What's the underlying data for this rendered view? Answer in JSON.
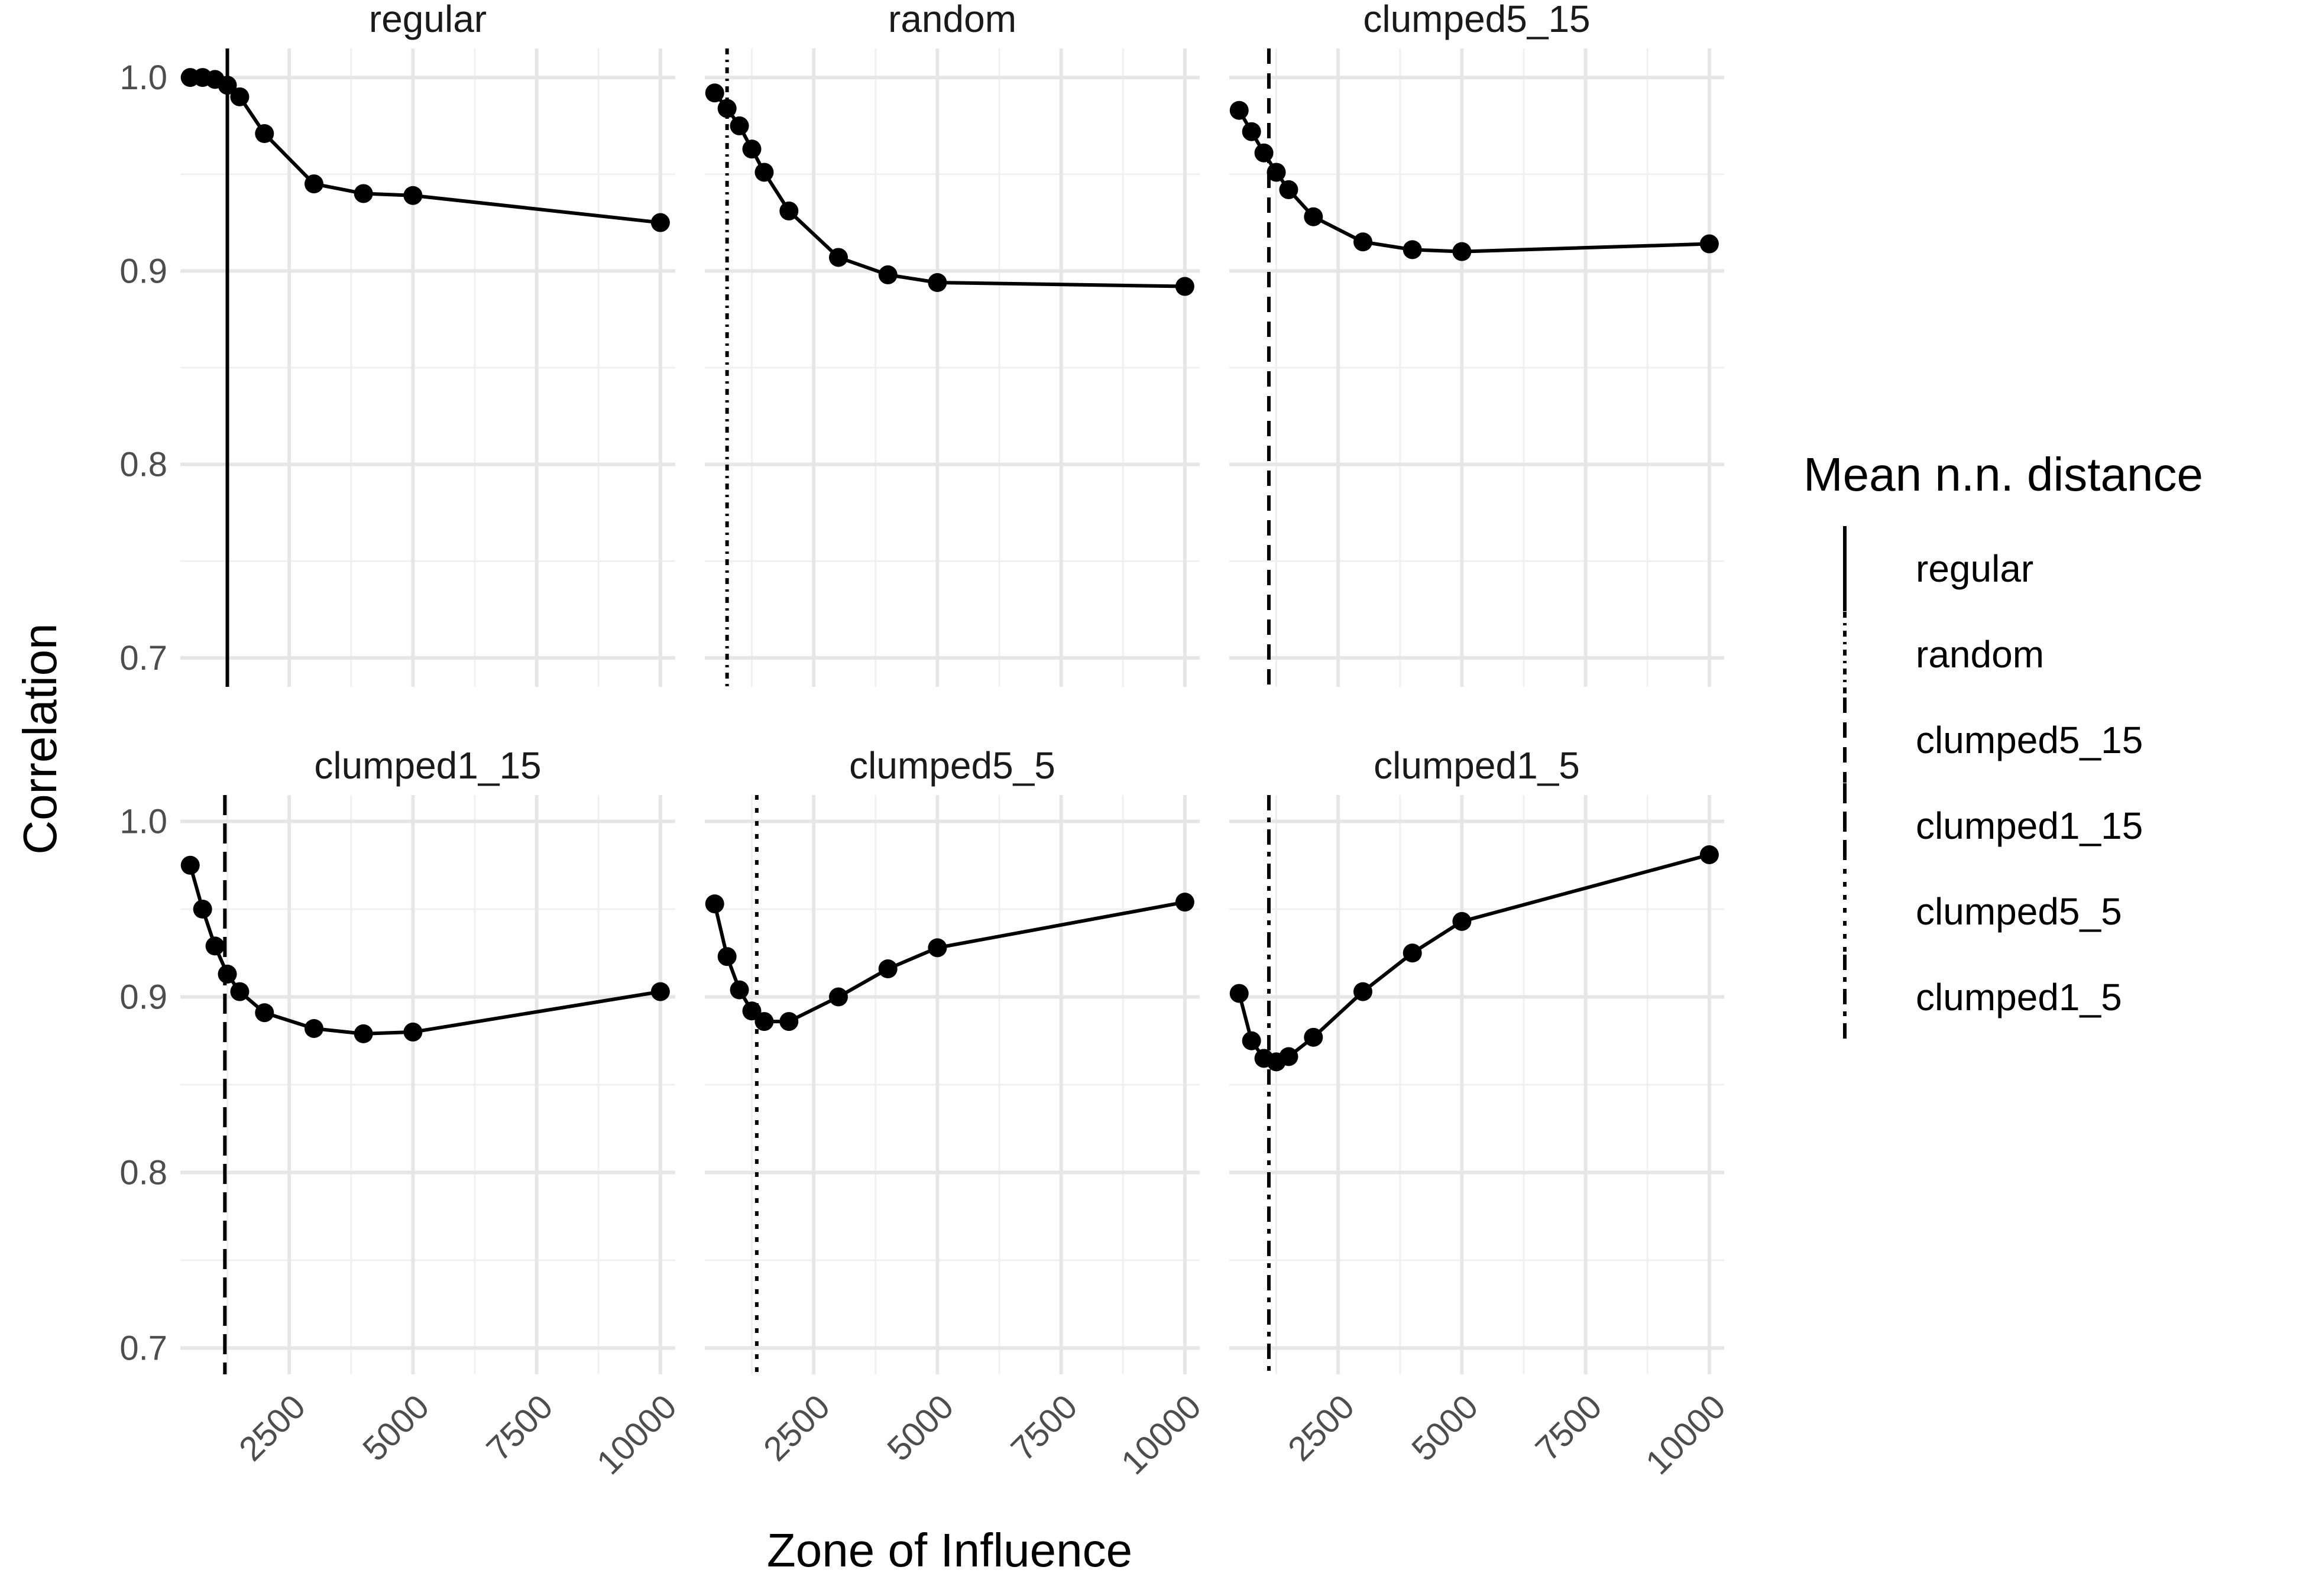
{
  "chart_data": {
    "type": "line",
    "xlabel": "Zone of Influence",
    "ylabel": "Correlation",
    "xlim": [
      300,
      10300
    ],
    "ylim": [
      0.685,
      1.015
    ],
    "xticks": [
      2500,
      5000,
      7500,
      10000
    ],
    "xtick_labels": [
      "2500",
      "5000",
      "7500",
      "10000"
    ],
    "yticks": [
      0.7,
      0.8,
      0.9,
      1.0
    ],
    "ytick_labels": [
      "0.7",
      "0.8",
      "0.9",
      "1.0"
    ],
    "grid": true,
    "legend": {
      "title": "Mean n.n. distance",
      "position": "right",
      "entries": [
        {
          "label": "regular",
          "dash": "solid"
        },
        {
          "label": "random",
          "dash": "dotdash-short"
        },
        {
          "label": "clumped5_15",
          "dash": "dashed"
        },
        {
          "label": "clumped1_15",
          "dash": "longdash"
        },
        {
          "label": "clumped5_5",
          "dash": "dotted"
        },
        {
          "label": "clumped1_5",
          "dash": "dotdash"
        }
      ]
    },
    "panels": [
      {
        "name": "regular",
        "vline": 1250,
        "vline_dash": "solid",
        "x": [
          500,
          750,
          1000,
          1250,
          1500,
          2000,
          3000,
          4000,
          5000,
          10000
        ],
        "y": [
          1.0,
          1.0,
          0.999,
          0.996,
          0.99,
          0.971,
          0.945,
          0.94,
          0.939,
          0.925
        ]
      },
      {
        "name": "random",
        "vline": 750,
        "vline_dash": "dotdash-short",
        "x": [
          500,
          750,
          1000,
          1250,
          1500,
          2000,
          3000,
          4000,
          5000,
          10000
        ],
        "y": [
          0.992,
          0.984,
          0.975,
          0.963,
          0.951,
          0.931,
          0.907,
          0.898,
          0.894,
          0.892
        ]
      },
      {
        "name": "clumped5_15",
        "vline": 1100,
        "vline_dash": "dashed",
        "x": [
          500,
          750,
          1000,
          1250,
          1500,
          2000,
          3000,
          4000,
          5000,
          10000
        ],
        "y": [
          0.983,
          0.972,
          0.961,
          0.951,
          0.942,
          0.928,
          0.915,
          0.911,
          0.91,
          0.914
        ]
      },
      {
        "name": "clumped1_15",
        "vline": 1200,
        "vline_dash": "longdash",
        "x": [
          500,
          750,
          1000,
          1250,
          1500,
          2000,
          3000,
          4000,
          5000,
          10000
        ],
        "y": [
          0.975,
          0.95,
          0.929,
          0.913,
          0.903,
          0.891,
          0.882,
          0.879,
          0.88,
          0.903
        ]
      },
      {
        "name": "clumped5_5",
        "vline": 1350,
        "vline_dash": "dotted",
        "x": [
          500,
          750,
          1000,
          1250,
          1500,
          2000,
          3000,
          4000,
          5000,
          10000
        ],
        "y": [
          0.953,
          0.923,
          0.904,
          0.892,
          0.886,
          0.886,
          0.9,
          0.916,
          0.928,
          0.954
        ]
      },
      {
        "name": "clumped1_5",
        "vline": 1100,
        "vline_dash": "dotdash",
        "x": [
          500,
          750,
          1000,
          1250,
          1500,
          2000,
          3000,
          4000,
          5000,
          10000
        ],
        "y": [
          0.902,
          0.875,
          0.865,
          0.863,
          0.866,
          0.877,
          0.903,
          0.925,
          0.943,
          0.981
        ]
      }
    ]
  }
}
